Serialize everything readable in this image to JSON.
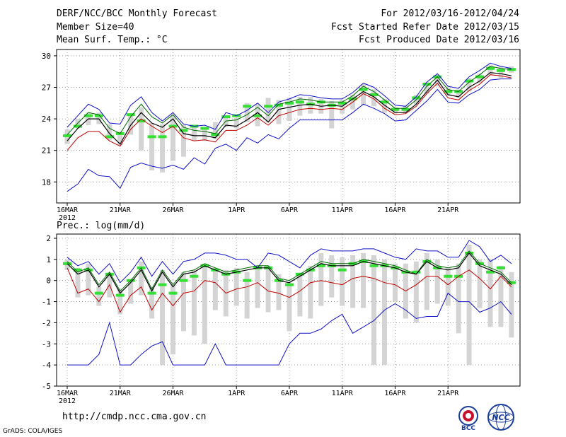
{
  "header": {
    "title": "DERF/NCC/BCC Monthly Forecast",
    "member_size": "Member Size=40",
    "variable": "Mean Surf. Temp.: °C",
    "period": "For 2012/03/16-2012/04/24",
    "start_date": "Fcst Started Refer Date 2012/03/15",
    "produced_date": "Fcst Produced Date 2012/03/16"
  },
  "precip_label": "Prec.: log(mm/d)",
  "footer": {
    "url": "http://cmdp.ncc.cma.gov.cn",
    "credit": "GrADS: COLA/IGES",
    "logo_bcc": "BCC",
    "logo_ncc": "NCC"
  },
  "colors": {
    "upper": "#1010c8",
    "lower": "#1010c8",
    "p90": "#006800",
    "p10": "#c00000",
    "mean": "#000000",
    "box": "#d4d4d4",
    "median": "#33e033"
  },
  "chart_data": [
    {
      "type": "box-ensemble",
      "title": "Mean Surf. Temp.: °C",
      "ylim": [
        16,
        30.6
      ],
      "yticks": [
        18,
        21,
        24,
        27,
        30
      ],
      "xtick_labels": [
        "16MAR\n2012",
        "21MAR",
        "26MAR",
        "1APR",
        "6APR",
        "11APR",
        "16APR",
        "21APR"
      ],
      "xtick_days": [
        0,
        5,
        10,
        16,
        21,
        26,
        31,
        36
      ],
      "days": 40,
      "series": [
        {
          "name": "max",
          "color": "upper",
          "values": [
            23.2,
            24.3,
            25.4,
            24.9,
            23.6,
            23.5,
            25.3,
            26.1,
            24.6,
            23.8,
            24.6,
            23.5,
            23.3,
            23.4,
            23.0,
            24.6,
            24.3,
            24.8,
            25.5,
            24.6,
            25.6,
            25.9,
            26.3,
            26.2,
            26.0,
            25.9,
            25.9,
            26.5,
            27.4,
            27.0,
            26.2,
            25.3,
            25.2,
            26.1,
            27.5,
            28.3,
            27.1,
            26.9,
            28.0,
            28.6,
            29.3,
            29.0,
            28.8
          ]
        },
        {
          "name": "p90",
          "color": "p90",
          "values": [
            22.5,
            23.6,
            24.6,
            24.4,
            23.1,
            22.6,
            24.2,
            25.4,
            24.2,
            23.6,
            24.4,
            23.2,
            22.9,
            22.8,
            22.6,
            23.8,
            23.9,
            24.4,
            25.1,
            24.3,
            25.4,
            25.6,
            25.9,
            25.8,
            25.6,
            25.6,
            25.6,
            26.2,
            27.1,
            26.6,
            25.8,
            25.0,
            25.0,
            25.8,
            27.1,
            28.0,
            26.8,
            26.6,
            27.5,
            28.2,
            29.0,
            28.8,
            28.7
          ]
        },
        {
          "name": "mean",
          "color": "mean",
          "values": [
            21.9,
            23.1,
            24.0,
            24.0,
            22.6,
            21.6,
            23.4,
            24.6,
            23.6,
            23.2,
            24.0,
            22.6,
            22.4,
            22.4,
            22.2,
            23.4,
            23.3,
            23.9,
            24.6,
            23.7,
            24.9,
            25.1,
            25.3,
            25.4,
            25.2,
            25.3,
            25.2,
            25.9,
            26.6,
            26.1,
            25.3,
            24.6,
            24.6,
            25.4,
            26.6,
            27.7,
            26.3,
            26.1,
            27.0,
            27.6,
            28.4,
            28.3,
            28.1
          ]
        },
        {
          "name": "p10",
          "color": "p10",
          "values": [
            21.0,
            22.2,
            22.8,
            22.8,
            21.9,
            21.4,
            23.0,
            24.0,
            23.3,
            22.7,
            23.3,
            22.2,
            21.9,
            22.0,
            21.8,
            22.9,
            22.9,
            23.4,
            24.1,
            23.4,
            24.3,
            24.6,
            24.9,
            25.0,
            24.9,
            25.0,
            24.9,
            25.6,
            26.4,
            25.9,
            25.0,
            24.4,
            24.5,
            25.2,
            26.4,
            27.4,
            26.0,
            25.8,
            26.7,
            27.3,
            28.2,
            28.1,
            27.9
          ]
        },
        {
          "name": "min",
          "color": "lower",
          "values": [
            17.1,
            17.8,
            19.2,
            18.6,
            18.5,
            17.4,
            19.4,
            19.8,
            19.5,
            19.3,
            19.6,
            19.2,
            20.3,
            19.7,
            21.2,
            21.6,
            21.0,
            22.2,
            21.7,
            22.5,
            22.1,
            23.1,
            23.9,
            23.9,
            23.9,
            23.9,
            23.9,
            24.6,
            25.4,
            25.0,
            24.5,
            23.8,
            23.9,
            24.8,
            25.7,
            26.8,
            25.6,
            25.5,
            26.3,
            26.8,
            27.7,
            27.8,
            27.8
          ]
        }
      ],
      "boxes": [
        {
          "day": 0,
          "lo": 21.6,
          "hi": 23.0,
          "median": 22.4
        },
        {
          "day": 1,
          "lo": 23.1,
          "hi": 24.0,
          "median": 23.3
        },
        {
          "day": 2,
          "lo": 23.4,
          "hi": 24.6,
          "median": 24.3
        },
        {
          "day": 3,
          "lo": 23.5,
          "hi": 24.6,
          "median": 24.3
        },
        {
          "day": 4,
          "lo": 22.0,
          "hi": 23.5,
          "median": 22.3
        },
        {
          "day": 5,
          "lo": 21.5,
          "hi": 22.5,
          "median": 22.6
        },
        {
          "day": 6,
          "lo": 22.5,
          "hi": 24.5,
          "median": 24.4
        },
        {
          "day": 7,
          "lo": 21.0,
          "hi": 25.1,
          "median": 23.8
        },
        {
          "day": 8,
          "lo": 19.1,
          "hi": 23.6,
          "median": 22.3
        },
        {
          "day": 9,
          "lo": 18.9,
          "hi": 23.5,
          "median": 22.3
        },
        {
          "day": 10,
          "lo": 20.0,
          "hi": 24.4,
          "median": 23.3
        },
        {
          "day": 11,
          "lo": 20.4,
          "hi": 23.4,
          "median": 22.9
        },
        {
          "day": 12,
          "lo": 21.9,
          "hi": 23.4,
          "median": 23.3
        },
        {
          "day": 13,
          "lo": 21.9,
          "hi": 23.0,
          "median": 23.1
        },
        {
          "day": 14,
          "lo": 22.1,
          "hi": 23.7,
          "median": 22.5
        },
        {
          "day": 15,
          "lo": 23.2,
          "hi": 24.3,
          "median": 24.2
        },
        {
          "day": 16,
          "lo": 23.1,
          "hi": 24.1,
          "median": 24.3
        },
        {
          "day": 17,
          "lo": 23.7,
          "hi": 25.5,
          "median": 25.2
        },
        {
          "day": 18,
          "lo": 23.3,
          "hi": 25.4,
          "median": 24.3
        },
        {
          "day": 19,
          "lo": 23.7,
          "hi": 26.0,
          "median": 25.2
        },
        {
          "day": 20,
          "lo": 23.5,
          "hi": 25.8,
          "median": 25.3
        },
        {
          "day": 21,
          "lo": 23.8,
          "hi": 26.0,
          "median": 25.5
        },
        {
          "day": 22,
          "lo": 24.3,
          "hi": 26.1,
          "median": 25.6
        },
        {
          "day": 23,
          "lo": 24.5,
          "hi": 26.1,
          "median": 25.4
        },
        {
          "day": 24,
          "lo": 24.5,
          "hi": 25.9,
          "median": 25.6
        },
        {
          "day": 25,
          "lo": 23.1,
          "hi": 25.7,
          "median": 25.3
        },
        {
          "day": 26,
          "lo": 24.5,
          "hi": 25.8,
          "median": 25.5
        },
        {
          "day": 27,
          "lo": 24.9,
          "hi": 26.3,
          "median": 25.9
        },
        {
          "day": 28,
          "lo": 25.3,
          "hi": 27.3,
          "median": 26.8
        },
        {
          "day": 29,
          "lo": 25.2,
          "hi": 26.8,
          "median": 26.3
        },
        {
          "day": 30,
          "lo": 24.6,
          "hi": 25.9,
          "median": 25.6
        },
        {
          "day": 31,
          "lo": 24.5,
          "hi": 25.1,
          "median": 24.9
        },
        {
          "day": 32,
          "lo": 24.6,
          "hi": 25.2,
          "median": 24.9
        },
        {
          "day": 33,
          "lo": 25.4,
          "hi": 26.3,
          "median": 26.0
        },
        {
          "day": 34,
          "lo": 26.4,
          "hi": 27.5,
          "median": 27.3
        },
        {
          "day": 35,
          "lo": 27.1,
          "hi": 28.2,
          "median": 28.0
        },
        {
          "day": 36,
          "lo": 26.2,
          "hi": 27.0,
          "median": 26.6
        },
        {
          "day": 37,
          "lo": 26.0,
          "hi": 26.8,
          "median": 26.6
        },
        {
          "day": 38,
          "lo": 26.6,
          "hi": 27.9,
          "median": 27.6
        },
        {
          "day": 39,
          "lo": 27.4,
          "hi": 28.3,
          "median": 28.0
        },
        {
          "day": 40,
          "lo": 28.2,
          "hi": 29.1,
          "median": 28.8
        },
        {
          "day": 41,
          "lo": 27.9,
          "hi": 29.0,
          "median": 28.6
        },
        {
          "day": 42,
          "lo": 28.4,
          "hi": 29.0,
          "median": 28.7
        }
      ]
    },
    {
      "type": "box-ensemble",
      "title": "Prec.: log(mm/d)",
      "ylim": [
        -5,
        2.2
      ],
      "yticks": [
        -5,
        -4,
        -3,
        -2,
        -1,
        0,
        1,
        2
      ],
      "xtick_labels": [
        "16MAR\n2012",
        "21MAR",
        "26MAR",
        "1APR",
        "6APR",
        "11APR",
        "16APR",
        "21APR"
      ],
      "xtick_days": [
        0,
        5,
        10,
        16,
        21,
        26,
        31,
        36
      ],
      "days": 40,
      "series": [
        {
          "name": "max",
          "color": "upper",
          "values": [
            1.1,
            0.7,
            0.9,
            0.3,
            0.8,
            -0.1,
            0.4,
            1.1,
            0.2,
            0.9,
            0.3,
            0.9,
            1.0,
            1.3,
            1.3,
            1.2,
            1.0,
            1.0,
            0.6,
            1.3,
            1.2,
            0.9,
            0.6,
            1.2,
            1.5,
            1.4,
            1.4,
            1.4,
            1.5,
            1.5,
            1.3,
            1.1,
            1.0,
            1.5,
            1.4,
            1.4,
            1.1,
            1.1,
            1.9,
            1.6,
            0.9,
            1.2,
            0.8
          ]
        },
        {
          "name": "p90",
          "color": "p90",
          "values": [
            0.9,
            0.4,
            0.6,
            -0.2,
            0.4,
            -0.5,
            0.0,
            0.6,
            -0.4,
            0.5,
            -0.2,
            0.4,
            0.5,
            0.8,
            0.6,
            0.4,
            0.5,
            0.6,
            0.7,
            0.7,
            0.1,
            0.0,
            0.3,
            0.6,
            0.9,
            0.8,
            0.8,
            0.8,
            1.0,
            0.9,
            0.8,
            0.7,
            0.5,
            0.3,
            1.0,
            0.7,
            0.6,
            0.7,
            1.4,
            0.8,
            0.6,
            0.4,
            -0.1
          ]
        },
        {
          "name": "mean",
          "color": "mean",
          "values": [
            0.8,
            0.3,
            0.5,
            -0.3,
            0.3,
            -0.6,
            -0.1,
            0.5,
            -0.5,
            0.4,
            -0.3,
            0.3,
            0.4,
            0.7,
            0.5,
            0.3,
            0.4,
            0.5,
            0.6,
            0.6,
            0.0,
            -0.1,
            0.2,
            0.5,
            0.8,
            0.7,
            0.7,
            0.7,
            0.9,
            0.8,
            0.7,
            0.6,
            0.4,
            0.3,
            0.9,
            0.6,
            0.5,
            0.6,
            1.3,
            0.7,
            0.5,
            0.3,
            -0.2
          ]
        },
        {
          "name": "p10",
          "color": "p10",
          "values": [
            0.6,
            -0.6,
            -0.4,
            -1.0,
            -0.2,
            -1.5,
            -0.7,
            -0.3,
            -1.4,
            -0.6,
            -1.2,
            -0.6,
            -0.5,
            0.0,
            -0.1,
            -0.6,
            -0.4,
            -0.3,
            -0.1,
            -0.5,
            -0.6,
            -0.8,
            -0.5,
            -0.1,
            0.0,
            -0.1,
            -0.2,
            0.1,
            0.2,
            0.1,
            -0.1,
            -0.2,
            -0.5,
            -0.2,
            0.2,
            0.2,
            -0.2,
            0.2,
            0.5,
            0.1,
            -0.4,
            0.2,
            -0.3
          ]
        },
        {
          "name": "min",
          "color": "lower",
          "values": [
            -4.0,
            -4.0,
            -4.0,
            -3.5,
            -2.0,
            -4.0,
            -4.0,
            -3.5,
            -3.1,
            -2.9,
            -4.0,
            -4.0,
            -4.0,
            -4.0,
            -3.0,
            -4.0,
            -4.0,
            -4.0,
            -4.0,
            -4.0,
            -4.0,
            -3.0,
            -2.5,
            -2.5,
            -2.3,
            -1.9,
            -1.6,
            -2.5,
            -2.2,
            -1.9,
            -1.4,
            -1.1,
            -1.4,
            -1.8,
            -1.7,
            -1.7,
            -0.6,
            -1.0,
            -1.0,
            -1.5,
            -1.3,
            -1.0,
            -1.6
          ]
        }
      ],
      "boxes": [
        {
          "day": 0,
          "lo": 0.5,
          "hi": 1.0,
          "median": 0.8
        },
        {
          "day": 1,
          "lo": -0.8,
          "hi": 0.6,
          "median": 0.5
        },
        {
          "day": 2,
          "lo": -0.7,
          "hi": 0.8,
          "median": 0.5
        },
        {
          "day": 3,
          "lo": -1.2,
          "hi": -0.3,
          "median": -0.6
        },
        {
          "day": 4,
          "lo": -0.8,
          "hi": 0.3,
          "median": 0.3
        },
        {
          "day": 5,
          "lo": -1.6,
          "hi": -0.4,
          "median": -0.7
        },
        {
          "day": 6,
          "lo": -1.1,
          "hi": 0.0,
          "median": 0.0
        },
        {
          "day": 7,
          "lo": -0.7,
          "hi": 0.9,
          "median": 0.6
        },
        {
          "day": 8,
          "lo": -1.8,
          "hi": -0.3,
          "median": -0.6
        },
        {
          "day": 9,
          "lo": -4.0,
          "hi": 0.5,
          "median": -0.2
        },
        {
          "day": 10,
          "lo": -3.5,
          "hi": -0.2,
          "median": -0.6
        },
        {
          "day": 11,
          "lo": -2.4,
          "hi": 0.4,
          "median": 0.0
        },
        {
          "day": 12,
          "lo": -2.6,
          "hi": 0.5,
          "median": 0.2
        },
        {
          "day": 13,
          "lo": -3.0,
          "hi": 0.8,
          "median": 0.7
        },
        {
          "day": 14,
          "lo": -1.4,
          "hi": 0.6,
          "median": 0.5
        },
        {
          "day": 15,
          "lo": -1.7,
          "hi": 0.5,
          "median": 0.3
        },
        {
          "day": 16,
          "lo": -1.2,
          "hi": 0.6,
          "median": 0.4
        },
        {
          "day": 17,
          "lo": -1.8,
          "hi": 0.4,
          "median": 0.0
        },
        {
          "day": 18,
          "lo": -1.3,
          "hi": 0.7,
          "median": 0.6
        },
        {
          "day": 19,
          "lo": -1.5,
          "hi": 0.7,
          "median": 0.6
        },
        {
          "day": 20,
          "lo": -1.4,
          "hi": 0.3,
          "median": 0.0
        },
        {
          "day": 21,
          "lo": -2.4,
          "hi": -0.1,
          "median": -0.2
        },
        {
          "day": 22,
          "lo": -1.7,
          "hi": 0.3,
          "median": 0.3
        },
        {
          "day": 23,
          "lo": -1.8,
          "hi": 0.7,
          "median": 0.5
        },
        {
          "day": 24,
          "lo": -1.2,
          "hi": 1.3,
          "median": 0.7
        },
        {
          "day": 25,
          "lo": -0.8,
          "hi": 1.2,
          "median": 0.7
        },
        {
          "day": 26,
          "lo": -1.2,
          "hi": 1.1,
          "median": 0.5
        },
        {
          "day": 27,
          "lo": -1.3,
          "hi": 1.2,
          "median": 0.8
        },
        {
          "day": 28,
          "lo": -1.3,
          "hi": 1.3,
          "median": 0.9
        },
        {
          "day": 29,
          "lo": -4.0,
          "hi": 1.2,
          "median": 0.7
        },
        {
          "day": 30,
          "lo": -4.0,
          "hi": 1.0,
          "median": 0.7
        },
        {
          "day": 31,
          "lo": -1.0,
          "hi": 0.8,
          "median": 0.6
        },
        {
          "day": 32,
          "lo": -1.8,
          "hi": 0.8,
          "median": 0.4
        },
        {
          "day": 33,
          "lo": -2.0,
          "hi": 0.9,
          "median": 0.4
        },
        {
          "day": 34,
          "lo": -1.4,
          "hi": 1.3,
          "median": 0.9
        },
        {
          "day": 35,
          "lo": -1.1,
          "hi": 1.0,
          "median": 0.6
        },
        {
          "day": 36,
          "lo": -1.2,
          "hi": 0.6,
          "median": 0.2
        },
        {
          "day": 37,
          "lo": -2.5,
          "hi": 0.8,
          "median": 0.2
        },
        {
          "day": 38,
          "lo": -4.0,
          "hi": 1.7,
          "median": 1.3
        },
        {
          "day": 39,
          "lo": -1.3,
          "hi": 1.0,
          "median": 0.8
        },
        {
          "day": 40,
          "lo": -2.2,
          "hi": 1.0,
          "median": 0.4
        },
        {
          "day": 41,
          "lo": -2.2,
          "hi": 0.7,
          "median": 0.6
        },
        {
          "day": 42,
          "lo": -2.7,
          "hi": 0.4,
          "median": -0.1
        }
      ]
    }
  ]
}
